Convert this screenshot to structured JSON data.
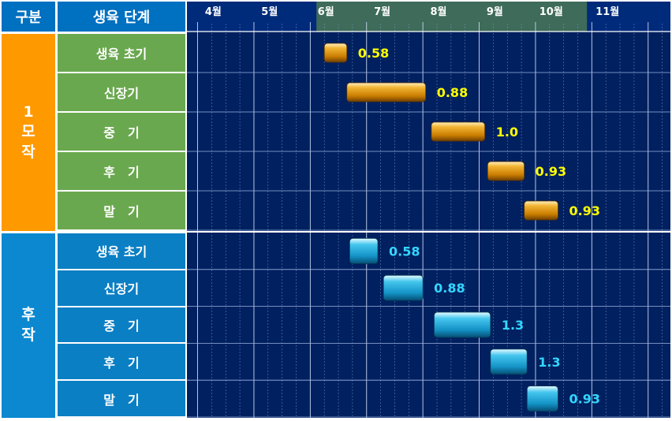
{
  "header": {
    "col_group": "구분",
    "col_stage": "생육 단계"
  },
  "groups": [
    {
      "label": "1\n모\n작"
    },
    {
      "label": "후\n작"
    }
  ],
  "colors": {
    "group1": "#ff9900",
    "group2": "#0b88d0",
    "stage_bg_1": "#6aa84f",
    "stage_bg_2": "#0b7fc4",
    "chart_bg": "#002060",
    "highlight": "#3e6b5a",
    "bar_orange": "#e39b00",
    "bar_blue": "#1aa7d8",
    "label_yellow": "#ffff00",
    "label_cyan": "#33d6ff"
  },
  "chart_data": {
    "type": "gantt",
    "months": [
      "4월",
      "5월",
      "6월",
      "7월",
      "8월",
      "9월",
      "10월",
      "11월"
    ],
    "highlight_range": [
      "6월",
      "10월"
    ],
    "groups": [
      {
        "group": "1모작",
        "stages": [
          {
            "name": "생육 초기",
            "start": 6.0,
            "end": 6.4,
            "value": "0.58"
          },
          {
            "name": "신장기",
            "start": 6.4,
            "end": 7.8,
            "value": "0.88"
          },
          {
            "name": "중　기",
            "start": 7.9,
            "end": 8.85,
            "value": "1.0"
          },
          {
            "name": "후　기",
            "start": 8.9,
            "end": 9.55,
            "value": "0.93"
          },
          {
            "name": "말　기",
            "start": 9.55,
            "end": 10.15,
            "value": "0.93"
          }
        ]
      },
      {
        "group": "후작",
        "stages": [
          {
            "name": "생육 초기",
            "start": 6.45,
            "end": 6.95,
            "value": "0.58"
          },
          {
            "name": "신장기",
            "start": 7.05,
            "end": 7.75,
            "value": "0.88"
          },
          {
            "name": "중　기",
            "start": 7.95,
            "end": 8.95,
            "value": "1.3"
          },
          {
            "name": "후　기",
            "start": 8.95,
            "end": 9.6,
            "value": "1.3"
          },
          {
            "name": "말　기",
            "start": 9.6,
            "end": 10.15,
            "value": "0.93"
          }
        ]
      }
    ]
  }
}
